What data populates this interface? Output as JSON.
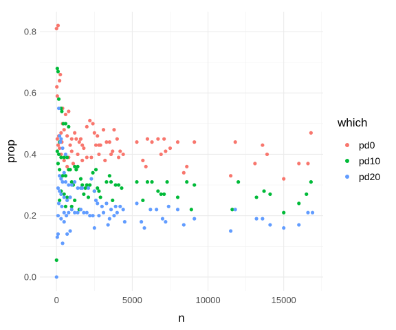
{
  "chart_data": {
    "type": "scatter",
    "xlabel": "n",
    "ylabel": "prop",
    "xlim": [
      -1100,
      17600
    ],
    "ylim": [
      -0.045,
      0.865
    ],
    "x_ticks": [
      0,
      5000,
      10000,
      15000
    ],
    "x_tick_labels": [
      "0",
      "5000",
      "10000",
      "15000"
    ],
    "y_ticks": [
      0.0,
      0.2,
      0.4,
      0.6,
      0.8
    ],
    "y_tick_labels": [
      "0.0",
      "0.2",
      "0.4",
      "0.6",
      "0.8"
    ],
    "grid": true,
    "legend": {
      "title": "which",
      "position": "right"
    },
    "series": [
      {
        "name": "pd0",
        "color": "#F8766D",
        "points": [
          [
            0,
            0.81
          ],
          [
            100,
            0.82
          ],
          [
            20,
            0.62
          ],
          [
            50,
            0.59
          ],
          [
            250,
            0.66
          ],
          [
            200,
            0.64
          ],
          [
            400,
            0.55
          ],
          [
            600,
            0.53
          ],
          [
            800,
            0.54
          ],
          [
            400,
            0.5
          ],
          [
            300,
            0.47
          ],
          [
            150,
            0.46
          ],
          [
            50,
            0.45
          ],
          [
            500,
            0.48
          ],
          [
            700,
            0.46
          ],
          [
            350,
            0.44
          ],
          [
            900,
            0.43
          ],
          [
            1000,
            0.45
          ],
          [
            1200,
            0.47
          ],
          [
            1300,
            0.45
          ],
          [
            1500,
            0.44
          ],
          [
            1600,
            0.45
          ],
          [
            1700,
            0.43
          ],
          [
            1800,
            0.42
          ],
          [
            2000,
            0.49
          ],
          [
            2200,
            0.51
          ],
          [
            2400,
            0.5
          ],
          [
            2500,
            0.47
          ],
          [
            2600,
            0.43
          ],
          [
            2700,
            0.46
          ],
          [
            2800,
            0.43
          ],
          [
            2900,
            0.43
          ],
          [
            3100,
            0.48
          ],
          [
            3300,
            0.44
          ],
          [
            3500,
            0.44
          ],
          [
            3700,
            0.41
          ],
          [
            3800,
            0.48
          ],
          [
            4000,
            0.45
          ],
          [
            4200,
            0.41
          ],
          [
            4400,
            0.4
          ],
          [
            100,
            0.43
          ],
          [
            200,
            0.42
          ],
          [
            300,
            0.4
          ],
          [
            500,
            0.38
          ],
          [
            700,
            0.36
          ],
          [
            800,
            0.39
          ],
          [
            1000,
            0.41
          ],
          [
            1100,
            0.37
          ],
          [
            1400,
            0.4
          ],
          [
            1700,
            0.38
          ],
          [
            2000,
            0.39
          ],
          [
            2300,
            0.39
          ],
          [
            2800,
            0.4
          ],
          [
            3200,
            0.38
          ],
          [
            3600,
            0.4
          ],
          [
            4100,
            0.39
          ],
          [
            5300,
            0.44
          ],
          [
            5700,
            0.38
          ],
          [
            5900,
            0.36
          ],
          [
            6000,
            0.45
          ],
          [
            6300,
            0.44
          ],
          [
            6700,
            0.45
          ],
          [
            6900,
            0.4
          ],
          [
            7100,
            0.45
          ],
          [
            7200,
            0.41
          ],
          [
            7500,
            0.42
          ],
          [
            8000,
            0.44
          ],
          [
            8400,
            0.34
          ],
          [
            8600,
            0.36
          ],
          [
            9100,
            0.44
          ],
          [
            11500,
            0.33
          ],
          [
            11800,
            0.44
          ],
          [
            13100,
            0.37
          ],
          [
            13600,
            0.43
          ],
          [
            13900,
            0.4
          ],
          [
            15000,
            0.32
          ],
          [
            16000,
            0.37
          ],
          [
            16600,
            0.37
          ],
          [
            16800,
            0.47
          ]
        ]
      },
      {
        "name": "pd10",
        "color": "#00BA38",
        "points": [
          [
            0,
            0.055
          ],
          [
            50,
            0.68
          ],
          [
            100,
            0.67
          ],
          [
            150,
            0.58
          ],
          [
            300,
            0.55
          ],
          [
            350,
            0.54
          ],
          [
            450,
            0.5
          ],
          [
            600,
            0.5
          ],
          [
            800,
            0.49
          ],
          [
            200,
            0.44
          ],
          [
            50,
            0.41
          ],
          [
            150,
            0.4
          ],
          [
            300,
            0.39
          ],
          [
            500,
            0.39
          ],
          [
            700,
            0.39
          ],
          [
            100,
            0.37
          ],
          [
            200,
            0.35
          ],
          [
            400,
            0.33
          ],
          [
            600,
            0.33
          ],
          [
            800,
            0.35
          ],
          [
            900,
            0.35
          ],
          [
            1000,
            0.31
          ],
          [
            1100,
            0.3
          ],
          [
            1200,
            0.36
          ],
          [
            1300,
            0.35
          ],
          [
            1400,
            0.36
          ],
          [
            1600,
            0.32
          ],
          [
            1700,
            0.3
          ],
          [
            1900,
            0.29
          ],
          [
            2000,
            0.3
          ],
          [
            2200,
            0.3
          ],
          [
            2400,
            0.34
          ],
          [
            2600,
            0.35
          ],
          [
            2700,
            0.29
          ],
          [
            2800,
            0.28
          ],
          [
            2900,
            0.26
          ],
          [
            3300,
            0.31
          ],
          [
            3500,
            0.33
          ],
          [
            3600,
            0.31
          ],
          [
            3700,
            0.25
          ],
          [
            3900,
            0.3
          ],
          [
            4100,
            0.3
          ],
          [
            4300,
            0.29
          ],
          [
            300,
            0.28
          ],
          [
            500,
            0.27
          ],
          [
            700,
            0.26
          ],
          [
            900,
            0.26
          ],
          [
            1200,
            0.25
          ],
          [
            1500,
            0.22
          ],
          [
            1800,
            0.27
          ],
          [
            2100,
            0.26
          ],
          [
            2500,
            0.28
          ],
          [
            200,
            0.25
          ],
          [
            600,
            0.23
          ],
          [
            1000,
            0.23
          ],
          [
            5300,
            0.31
          ],
          [
            5700,
            0.25
          ],
          [
            6000,
            0.31
          ],
          [
            6300,
            0.31
          ],
          [
            6700,
            0.28
          ],
          [
            6900,
            0.27
          ],
          [
            7100,
            0.27
          ],
          [
            7300,
            0.31
          ],
          [
            8000,
            0.26
          ],
          [
            8600,
            0.31
          ],
          [
            8900,
            0.22
          ],
          [
            9100,
            0.3
          ],
          [
            11600,
            0.22
          ],
          [
            12000,
            0.31
          ],
          [
            13200,
            0.26
          ],
          [
            13700,
            0.28
          ],
          [
            14100,
            0.27
          ],
          [
            15000,
            0.21
          ],
          [
            16000,
            0.24
          ],
          [
            16500,
            0.27
          ],
          [
            16800,
            0.31
          ]
        ]
      },
      {
        "name": "pd20",
        "color": "#619CFF",
        "points": [
          [
            0,
            0.0
          ],
          [
            50,
            0.13
          ],
          [
            100,
            0.14
          ],
          [
            150,
            0.55
          ],
          [
            200,
            0.46
          ],
          [
            250,
            0.44
          ],
          [
            300,
            0.45
          ],
          [
            400,
            0.42
          ],
          [
            600,
            0.4
          ],
          [
            500,
            0.34
          ],
          [
            200,
            0.33
          ],
          [
            300,
            0.32
          ],
          [
            400,
            0.31
          ],
          [
            600,
            0.31
          ],
          [
            800,
            0.3
          ],
          [
            100,
            0.29
          ],
          [
            200,
            0.28
          ],
          [
            300,
            0.27
          ],
          [
            500,
            0.26
          ],
          [
            700,
            0.25
          ],
          [
            900,
            0.26
          ],
          [
            1000,
            0.3
          ],
          [
            1200,
            0.31
          ],
          [
            1400,
            0.29
          ],
          [
            1600,
            0.29
          ],
          [
            1700,
            0.29
          ],
          [
            2100,
            0.29
          ],
          [
            2300,
            0.32
          ],
          [
            2500,
            0.28
          ],
          [
            2600,
            0.25
          ],
          [
            2700,
            0.24
          ],
          [
            3000,
            0.23
          ],
          [
            3300,
            0.24
          ],
          [
            3600,
            0.22
          ],
          [
            3900,
            0.23
          ],
          [
            4200,
            0.23
          ],
          [
            4400,
            0.22
          ],
          [
            150,
            0.24
          ],
          [
            350,
            0.23
          ],
          [
            500,
            0.21
          ],
          [
            650,
            0.2
          ],
          [
            800,
            0.21
          ],
          [
            1000,
            0.22
          ],
          [
            1200,
            0.21
          ],
          [
            1400,
            0.21
          ],
          [
            1600,
            0.22
          ],
          [
            1800,
            0.21
          ],
          [
            2000,
            0.21
          ],
          [
            2200,
            0.2
          ],
          [
            2400,
            0.2
          ],
          [
            2800,
            0.2
          ],
          [
            3100,
            0.21
          ],
          [
            3500,
            0.19
          ],
          [
            3800,
            0.2
          ],
          [
            4000,
            0.21
          ],
          [
            4500,
            0.18
          ],
          [
            100,
            0.2
          ],
          [
            300,
            0.19
          ],
          [
            500,
            0.18
          ],
          [
            700,
            0.14
          ],
          [
            900,
            0.15
          ],
          [
            400,
            0.11
          ],
          [
            2500,
            0.16
          ],
          [
            3400,
            0.17
          ],
          [
            5300,
            0.24
          ],
          [
            5600,
            0.18
          ],
          [
            5800,
            0.16
          ],
          [
            6200,
            0.22
          ],
          [
            6600,
            0.22
          ],
          [
            7000,
            0.19
          ],
          [
            7200,
            0.18
          ],
          [
            7400,
            0.23
          ],
          [
            8000,
            0.22
          ],
          [
            8400,
            0.17
          ],
          [
            9100,
            0.19
          ],
          [
            11500,
            0.15
          ],
          [
            11800,
            0.22
          ],
          [
            13200,
            0.19
          ],
          [
            13600,
            0.19
          ],
          [
            14100,
            0.17
          ],
          [
            15000,
            0.16
          ],
          [
            16000,
            0.17
          ],
          [
            16600,
            0.21
          ],
          [
            16900,
            0.21
          ]
        ]
      }
    ]
  }
}
